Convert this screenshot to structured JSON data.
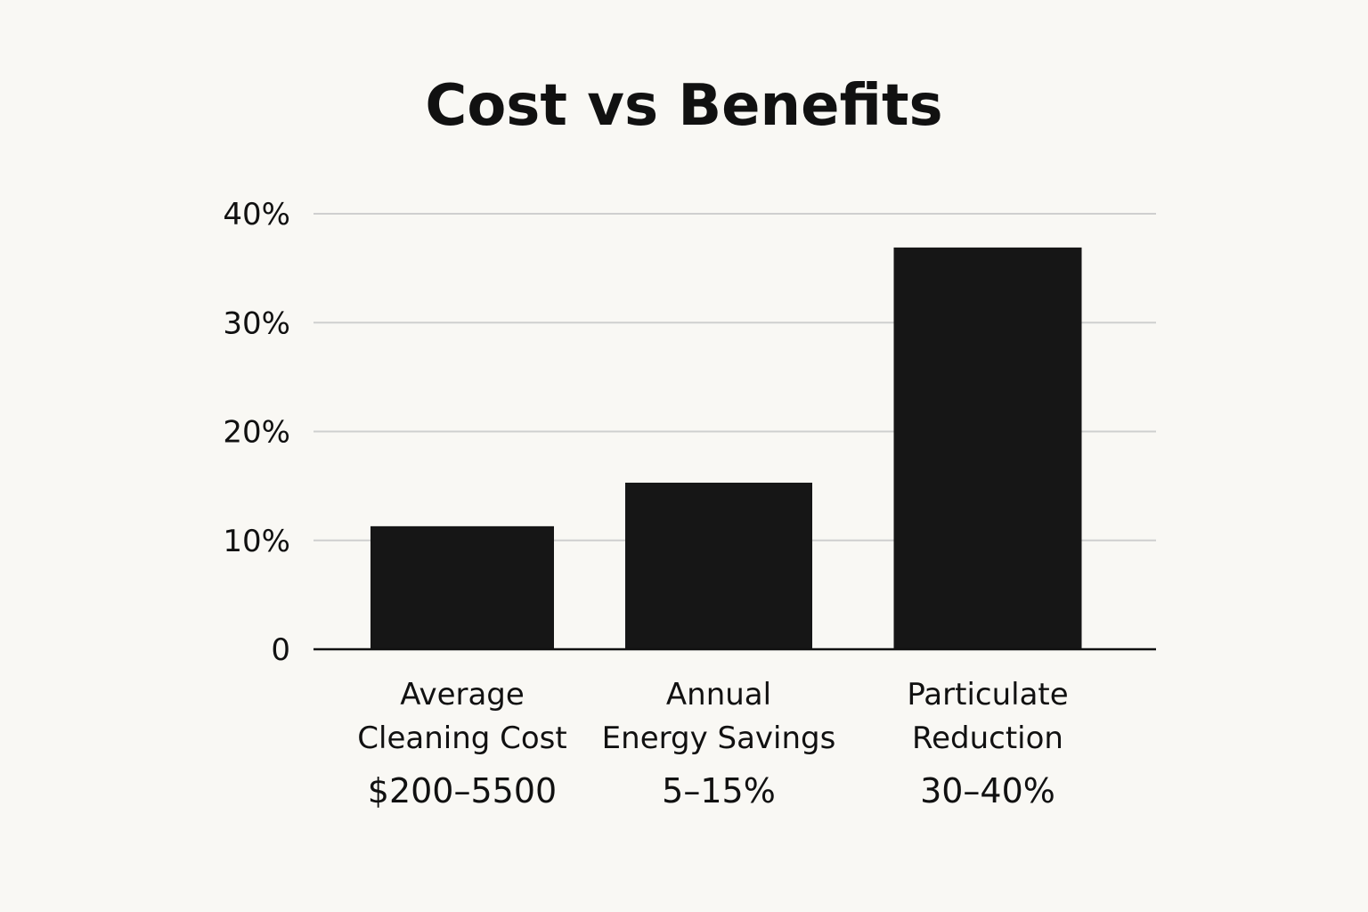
{
  "chart_data": {
    "type": "bar",
    "title": "Cost vs Benefits",
    "xlabel": "",
    "ylabel": "",
    "ylim": [
      0,
      40
    ],
    "yticks": [
      0,
      10,
      20,
      30,
      40
    ],
    "ytick_labels": [
      "0",
      "10%",
      "20%",
      "30%",
      "40%"
    ],
    "grid": true,
    "categories": [
      {
        "lines": [
          "Average",
          "Cleaning Cost"
        ],
        "range_label": "$200–5500"
      },
      {
        "lines": [
          "Annual",
          "Energy Savings"
        ],
        "range_label": "5–15%"
      },
      {
        "lines": [
          "Particulate",
          "Reduction"
        ],
        "range_label": "30–40%"
      }
    ],
    "values": [
      11.3,
      15.3,
      36.9
    ]
  },
  "colors": {
    "background": "#f9f8f4",
    "bar": "#161616",
    "grid": "#cfcfcf",
    "axis": "#111111",
    "text": "#111111"
  }
}
